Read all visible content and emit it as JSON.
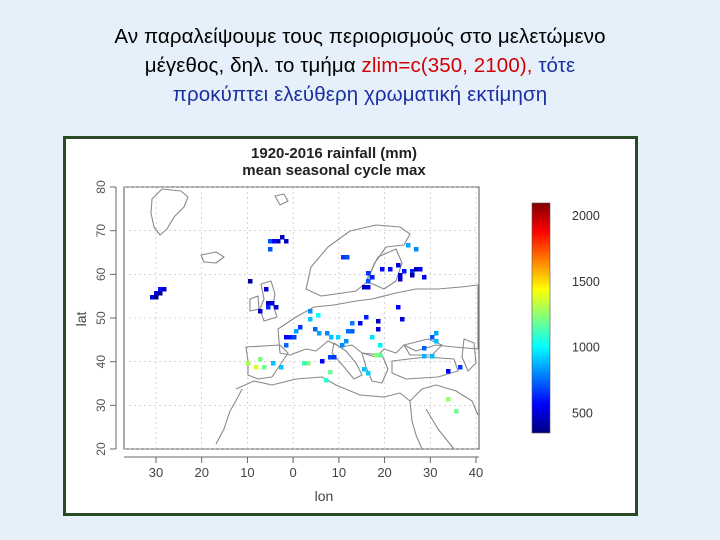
{
  "slide": {
    "line1": "Αν παραλείψουμε τους περιορισμούς στο μελετώμενο",
    "line2_prefix": "μέγεθος, δηλ. το τμήμα",
    "line2_code": "zlim=c(350, 2100),",
    "line2_suffix": "τότε",
    "line3": "προκύπτει ελεύθερη χρωματική εκτίμηση"
  },
  "map": {
    "title_line1": "1920-2016 rainfall (mm)",
    "title_line2": "mean seasonal cycle max",
    "xlabel": "lon",
    "ylabel": "lat",
    "x_ticks": [
      "30",
      "20",
      "10",
      "0",
      "10",
      "20",
      "30",
      "40"
    ],
    "y_ticks": [
      "80",
      "70",
      "60",
      "50",
      "40",
      "30",
      "20"
    ],
    "colorbar_labels": [
      "2000",
      "1500",
      "1000",
      "500"
    ],
    "colorbar_colors": [
      "#00007f",
      "#0000ff",
      "#007fff",
      "#00ffff",
      "#7fff7f",
      "#ffff00",
      "#ff7f00",
      "#ff0000",
      "#7f0000"
    ],
    "colorbar_range": [
      350,
      2100
    ]
  }
}
